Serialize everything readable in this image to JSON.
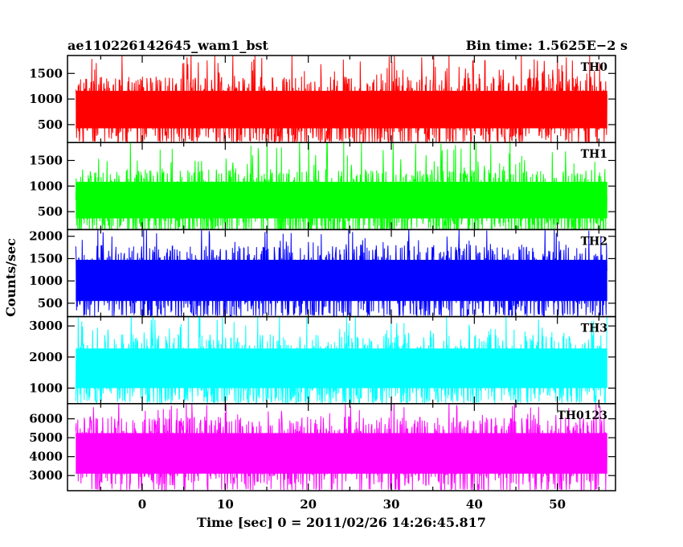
{
  "header": {
    "left": "ae110226142645_wam1_bst",
    "right": "Bin time: 1.5625E−2 s"
  },
  "chart_data": {
    "type": "line",
    "xlabel": "Time [sec] 0 = 2011/02/26 14:26:45.817",
    "ylabel": "Counts/sec",
    "xlim": [
      -9,
      57
    ],
    "x_ticks": [
      0,
      10,
      20,
      30,
      40,
      50
    ],
    "data_x_range": [
      -8,
      56
    ],
    "bin_time": 0.015625,
    "grid": false,
    "panels": [
      {
        "name": "TH0",
        "color": "#ff0000",
        "ylim": [
          150,
          1850
        ],
        "y_ticks": [
          500,
          1000,
          1500
        ],
        "mean": 800,
        "low_envelope": 180,
        "high_envelope": 1600,
        "peak": 1850
      },
      {
        "name": "TH1",
        "color": "#00ff00",
        "ylim": [
          150,
          1850
        ],
        "y_ticks": [
          500,
          1000,
          1500
        ],
        "mean": 700,
        "low_envelope": 150,
        "high_envelope": 1550,
        "peak": 1850
      },
      {
        "name": "TH2",
        "color": "#0000ff",
        "ylim": [
          200,
          2150
        ],
        "y_ticks": [
          500,
          1000,
          1500,
          2000
        ],
        "mean": 1000,
        "low_envelope": 250,
        "high_envelope": 2050,
        "peak": 2150
      },
      {
        "name": "TH3",
        "color": "#00ffff",
        "ylim": [
          500,
          3300
        ],
        "y_ticks": [
          1000,
          2000,
          3000
        ],
        "mean": 1600,
        "low_envelope": 600,
        "high_envelope": 3100,
        "peak": 3300
      },
      {
        "name": "TH0123",
        "color": "#ff00ff",
        "ylim": [
          2200,
          6800
        ],
        "y_ticks": [
          3000,
          4000,
          5000,
          6000
        ],
        "mean": 4300,
        "low_envelope": 2300,
        "high_envelope": 6400,
        "peak": 6800
      }
    ]
  }
}
